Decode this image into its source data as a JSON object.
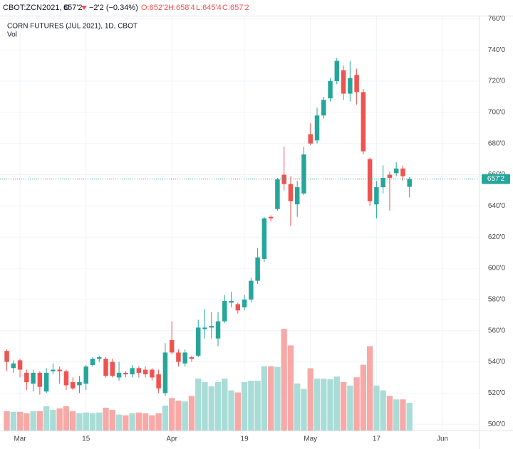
{
  "header": {
    "symbol": "CBOT:ZCN2021, D",
    "last": "657'2",
    "change": "−2'2 (−0.34%)",
    "open": "O:652'2",
    "high": "H:658'4",
    "low": "L:645'4",
    "close": "C:657'2"
  },
  "chart_data": {
    "type": "candlestick",
    "title": "CORN FUTURES (JUL 2021), 1D, CBOT",
    "volume_title": "Vol",
    "up_color": "#26a69a",
    "down_color": "#ef5350",
    "volume_up_color": "#a9dcd6",
    "volume_down_color": "#f7a9a7",
    "open": [
      547,
      536,
      541,
      533,
      526,
      533,
      521,
      534,
      535,
      534,
      527,
      525,
      526,
      538,
      542,
      542,
      540,
      530,
      533,
      532,
      536,
      535,
      535,
      532,
      520,
      554,
      546,
      539,
      543,
      544,
      561,
      562,
      555,
      566,
      578,
      577,
      575,
      580,
      592,
      606,
      633,
      638,
      660,
      654,
      641,
      648,
      686,
      682,
      698,
      709,
      720,
      727,
      712,
      724,
      713,
      670,
      641,
      652,
      660,
      661,
      664,
      652.25
    ],
    "high": [
      548,
      541,
      542,
      535,
      535,
      534,
      536,
      539,
      537,
      535,
      530,
      531,
      538,
      543,
      544,
      543,
      542,
      540,
      534,
      538,
      537,
      537,
      536,
      535,
      552,
      566,
      548,
      548,
      544,
      567,
      574,
      572,
      572,
      583,
      585,
      578,
      583,
      594,
      613,
      633,
      634,
      658,
      678,
      659,
      656,
      678,
      693,
      703,
      710,
      722,
      735,
      730,
      733,
      728,
      715,
      671,
      656,
      666,
      662,
      668,
      666,
      658.5
    ],
    "low": [
      534,
      533,
      530,
      522,
      521,
      519,
      520,
      532,
      526,
      522,
      522,
      520,
      522,
      537,
      540,
      530,
      530,
      528,
      530,
      530,
      530,
      530,
      528,
      520,
      518,
      545,
      537,
      537,
      540,
      543,
      555,
      555,
      550,
      565,
      575,
      571,
      573,
      578,
      590,
      604,
      630,
      637,
      650,
      627,
      633,
      647,
      679,
      680,
      696,
      707,
      718,
      708,
      707,
      705,
      673,
      640,
      632,
      648,
      637,
      659,
      656,
      645.5
    ],
    "close": [
      540,
      539,
      535,
      527,
      533,
      524,
      533,
      535,
      534,
      525,
      523,
      527,
      537,
      542,
      543,
      531,
      531,
      533,
      532,
      536,
      533,
      532,
      530,
      523,
      546,
      546,
      540,
      546,
      542,
      562,
      562,
      563,
      566,
      579,
      579,
      573,
      580,
      592,
      607,
      632,
      632,
      657,
      654,
      643,
      652,
      673,
      680,
      698,
      708,
      720,
      733,
      712,
      722,
      713,
      675,
      643,
      652,
      658,
      658,
      664,
      659,
      657.25
    ],
    "volume": [
      28,
      27,
      27,
      25,
      28,
      28,
      35,
      30,
      32,
      35,
      28,
      25,
      26,
      25,
      26,
      33,
      30,
      23,
      22,
      25,
      26,
      25,
      22,
      25,
      36,
      47,
      43,
      42,
      50,
      75,
      70,
      64,
      70,
      75,
      58,
      55,
      70,
      72,
      72,
      93,
      93,
      92,
      147,
      123,
      68,
      60,
      90,
      75,
      75,
      74,
      78,
      70,
      65,
      77,
      95,
      122,
      65,
      58,
      50,
      45,
      45,
      40
    ],
    "vlim": [
      0,
      600
    ],
    "xlim": [
      -1.03,
      71.5
    ],
    "xticks": [
      {
        "value": 2,
        "label": "Mar"
      },
      {
        "value": 12,
        "label": "15"
      },
      {
        "value": 25,
        "label": "Apr"
      },
      {
        "value": 36,
        "label": "19"
      },
      {
        "value": 46,
        "label": "May"
      },
      {
        "value": 56,
        "label": "17"
      },
      {
        "value": 66,
        "label": "Jun"
      }
    ],
    "ylim": [
      496,
      762
    ],
    "yticks": [
      {
        "value": 500,
        "label": "500'0"
      },
      {
        "value": 520,
        "label": "520'0"
      },
      {
        "value": 540,
        "label": "540'0"
      },
      {
        "value": 560,
        "label": "560'0"
      },
      {
        "value": 580,
        "label": "580'0"
      },
      {
        "value": 600,
        "label": "600'0"
      },
      {
        "value": 620,
        "label": "620'0"
      },
      {
        "value": 640,
        "label": "640'0"
      },
      {
        "value": 660,
        "label": "660'0"
      },
      {
        "value": 680,
        "label": "680'0"
      },
      {
        "value": 700,
        "label": "700'0"
      },
      {
        "value": 720,
        "label": "720'0"
      },
      {
        "value": 740,
        "label": "740'0"
      },
      {
        "value": 760,
        "label": "760'0"
      }
    ],
    "last_price": {
      "value": 657.25,
      "label": "657'2"
    },
    "grid": true
  }
}
